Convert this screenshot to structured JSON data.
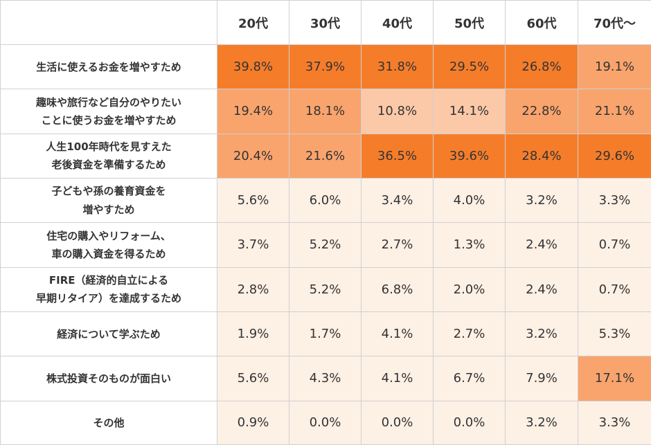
{
  "colors": {
    "high": "#f57d2a",
    "medium": "#f9a46d",
    "low": "#fbc9a8",
    "very_low": "#fdf0e5",
    "border": "#d0d0d0",
    "text": "#333333"
  },
  "chart_data": {
    "type": "heatmap",
    "columns": [
      "20代",
      "30代",
      "40代",
      "50代",
      "60代",
      "70代～"
    ],
    "rows": [
      {
        "label": "生活に使えるお金を増やすため",
        "values": [
          "39.8%",
          "37.9%",
          "31.8%",
          "29.5%",
          "26.8%",
          "19.1%"
        ]
      },
      {
        "label": "趣味や旅行など自分のやりたい\nことに使うお金を増やすため",
        "values": [
          "19.4%",
          "18.1%",
          "10.8%",
          "14.1%",
          "22.8%",
          "21.1%"
        ]
      },
      {
        "label": "人生100年時代を見すえた\n老後資金を準備するため",
        "values": [
          "20.4%",
          "21.6%",
          "36.5%",
          "39.6%",
          "28.4%",
          "29.6%"
        ]
      },
      {
        "label": "子どもや孫の養育資金を\n増やすため",
        "values": [
          "5.6%",
          "6.0%",
          "3.4%",
          "4.0%",
          "3.2%",
          "3.3%"
        ]
      },
      {
        "label": "住宅の購入やリフォーム、\n車の購入資金を得るため",
        "values": [
          "3.7%",
          "5.2%",
          "2.7%",
          "1.3%",
          "2.4%",
          "0.7%"
        ]
      },
      {
        "label": "FIRE（経済的自立による\n早期リタイア）を達成するため",
        "values": [
          "2.8%",
          "5.2%",
          "6.8%",
          "2.0%",
          "2.4%",
          "0.7%"
        ]
      },
      {
        "label": "経済について学ぶため",
        "values": [
          "1.9%",
          "1.7%",
          "4.1%",
          "2.7%",
          "3.2%",
          "5.3%"
        ]
      },
      {
        "label": "株式投資そのものが面白い",
        "values": [
          "5.6%",
          "4.3%",
          "4.1%",
          "6.7%",
          "7.9%",
          "17.1%"
        ]
      },
      {
        "label": "その他",
        "values": [
          "0.9%",
          "0.0%",
          "0.0%",
          "0.0%",
          "3.2%",
          "3.3%"
        ]
      }
    ]
  }
}
